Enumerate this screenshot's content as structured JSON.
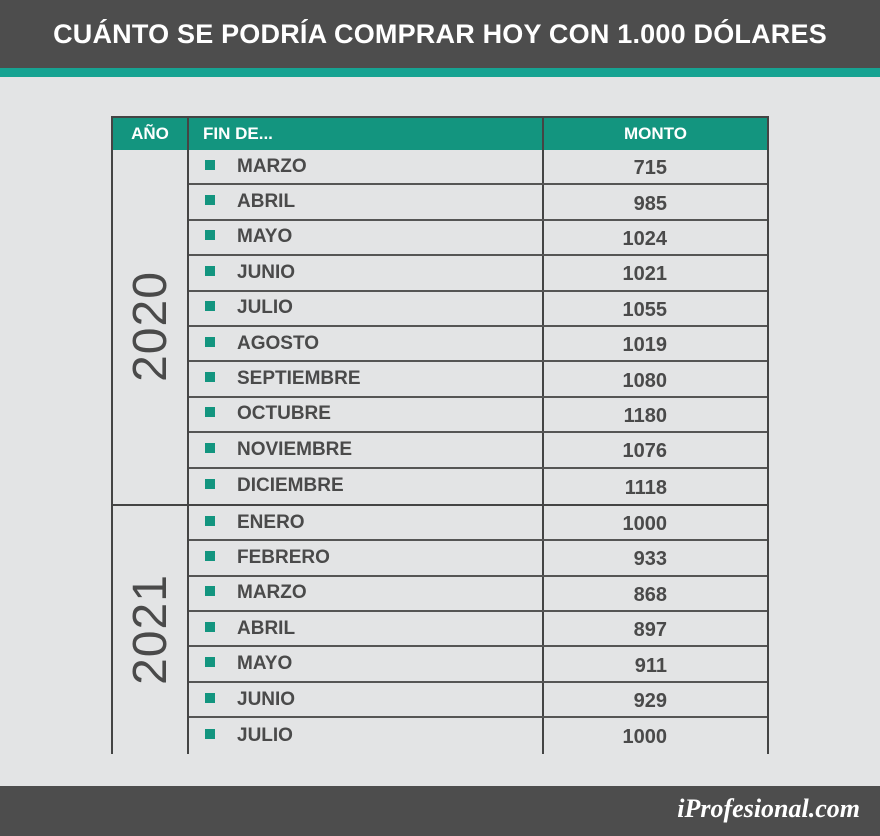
{
  "title": "CUÁNTO SE PODRÍA COMPRAR HOY CON 1.000 DÓLARES",
  "table": {
    "headers": {
      "year": "AÑO",
      "fin": "FIN DE...",
      "monto": "MONTO"
    },
    "groups": [
      {
        "year": "2020",
        "rows": [
          {
            "month": "MARZO",
            "monto": "715"
          },
          {
            "month": "ABRIL",
            "monto": "985"
          },
          {
            "month": "MAYO",
            "monto": "1024"
          },
          {
            "month": "JUNIO",
            "monto": "1021"
          },
          {
            "month": "JULIO",
            "monto": "1055"
          },
          {
            "month": "AGOSTO",
            "monto": "1019"
          },
          {
            "month": "SEPTIEMBRE",
            "monto": "1080"
          },
          {
            "month": "OCTUBRE",
            "monto": "1180"
          },
          {
            "month": "NOVIEMBRE",
            "monto": "1076"
          },
          {
            "month": "DICIEMBRE",
            "monto": "1118"
          }
        ]
      },
      {
        "year": "2021",
        "rows": [
          {
            "month": "ENERO",
            "monto": "1000"
          },
          {
            "month": "FEBRERO",
            "monto": "933"
          },
          {
            "month": "MARZO",
            "monto": "868"
          },
          {
            "month": "ABRIL",
            "monto": "897"
          },
          {
            "month": "MAYO",
            "monto": "911"
          },
          {
            "month": "JUNIO",
            "monto": "929"
          },
          {
            "month": "JULIO",
            "monto": "1000"
          }
        ]
      }
    ]
  },
  "footer": {
    "logo": "iProfesional.com"
  },
  "colors": {
    "accent": "#13957f",
    "dark": "#4d4d4d",
    "background": "#e3e4e5"
  }
}
